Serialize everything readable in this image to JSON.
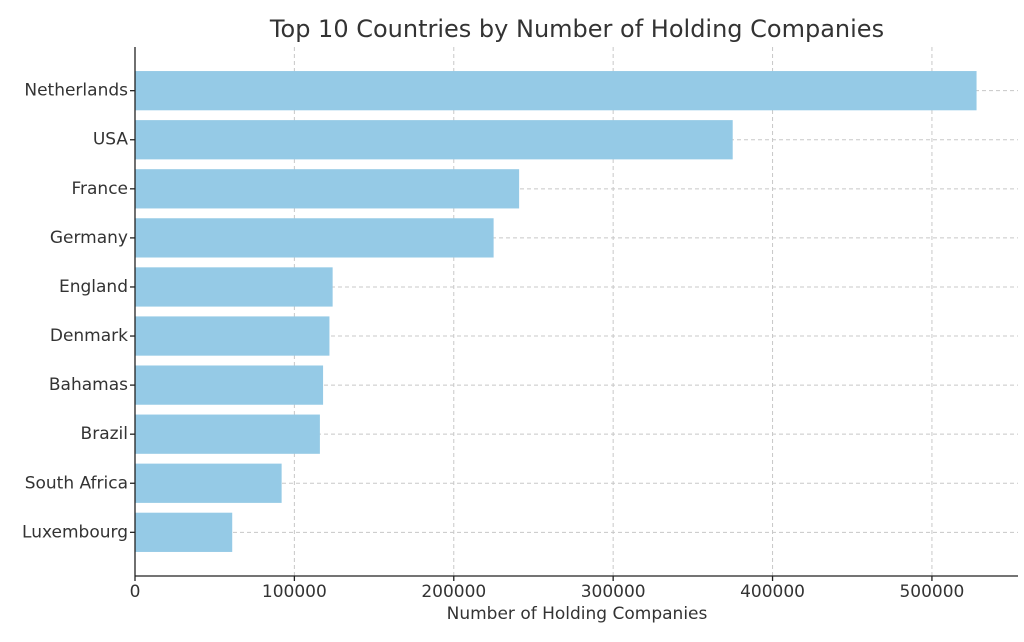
{
  "chart_data": {
    "type": "barh",
    "title": "Top 10 Countries by Number of Holding Companies",
    "x_label": "Number of Holding Companies",
    "categories": [
      "Netherlands",
      "USA",
      "France",
      "Germany",
      "England",
      "Denmark",
      "Bahamas",
      "Brazil",
      "South Africa",
      "Luxembourg"
    ],
    "values": [
      528000,
      375000,
      241000,
      225000,
      124000,
      122000,
      118000,
      116000,
      92000,
      61000
    ],
    "color": "#95cae6",
    "xlim": [
      0,
      554000
    ],
    "xticks": [
      0,
      100000,
      200000,
      300000,
      400000,
      500000
    ],
    "grid": true
  }
}
